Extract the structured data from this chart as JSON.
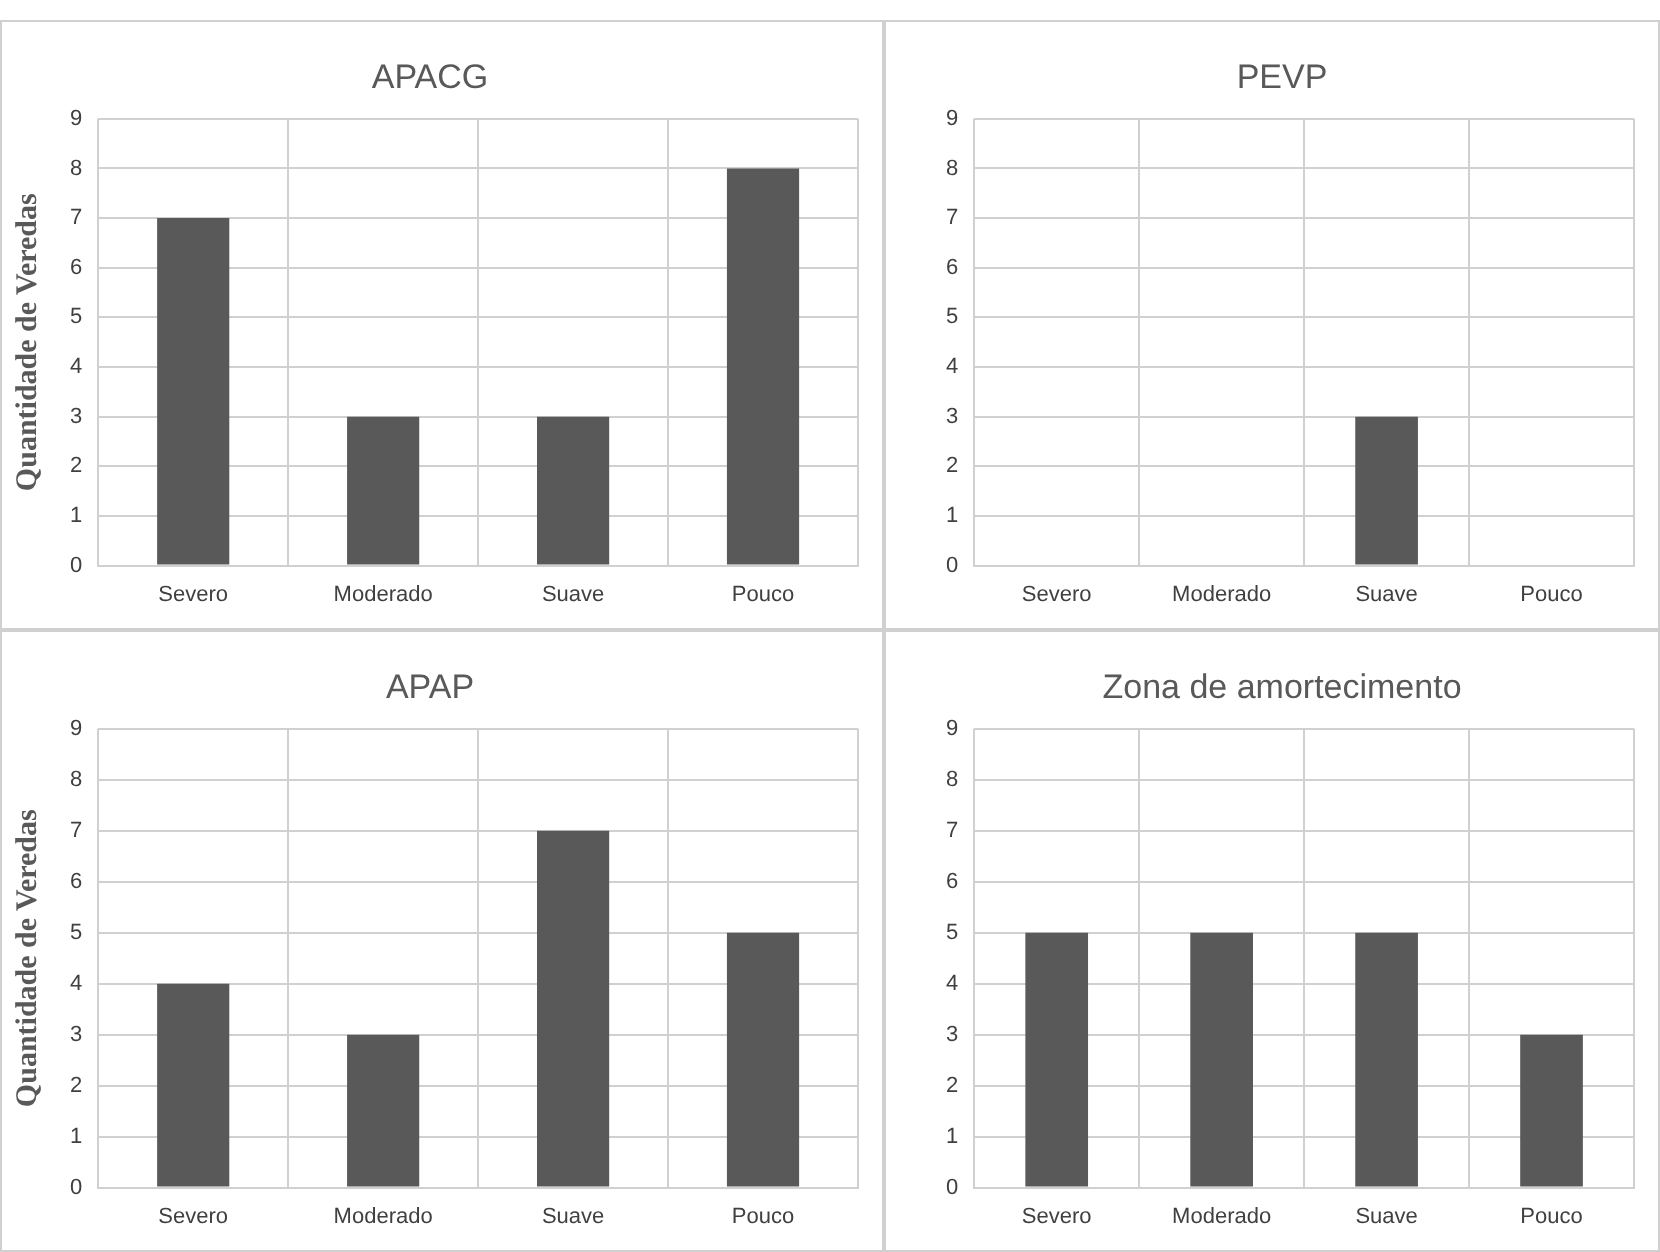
{
  "chart_data": [
    {
      "type": "bar",
      "title": "APACG",
      "ylabel": "Quantidade de Veredas",
      "categories": [
        "Severo",
        "Moderado",
        "Suave",
        "Pouco"
      ],
      "values": [
        7,
        3,
        3,
        8
      ],
      "color": "#595959",
      "ylim": [
        0,
        9
      ],
      "yticks": [
        0,
        1,
        2,
        3,
        4,
        5,
        6,
        7,
        8,
        9
      ],
      "grid": true,
      "legend": false
    },
    {
      "type": "bar",
      "title": "PEVP",
      "categories": [
        "Severo",
        "Moderado",
        "Suave",
        "Pouco"
      ],
      "values": [
        0,
        0,
        3,
        0
      ],
      "color": "#595959",
      "ylim": [
        0,
        9
      ],
      "yticks": [
        0,
        1,
        2,
        3,
        4,
        5,
        6,
        7,
        8,
        9
      ],
      "grid": true,
      "legend": false
    },
    {
      "type": "bar",
      "title": "APAP",
      "ylabel": "Quantidade de Veredas",
      "categories": [
        "Severo",
        "Moderado",
        "Suave",
        "Pouco"
      ],
      "values": [
        4,
        3,
        7,
        5
      ],
      "color": "#595959",
      "ylim": [
        0,
        9
      ],
      "yticks": [
        0,
        1,
        2,
        3,
        4,
        5,
        6,
        7,
        8,
        9
      ],
      "grid": true,
      "legend": false
    },
    {
      "type": "bar",
      "title": "Zona de amortecimento",
      "categories": [
        "Severo",
        "Moderado",
        "Suave",
        "Pouco"
      ],
      "values": [
        5,
        5,
        5,
        3
      ],
      "color": "#595959",
      "ylim": [
        0,
        9
      ],
      "yticks": [
        0,
        1,
        2,
        3,
        4,
        5,
        6,
        7,
        8,
        9
      ],
      "grid": true,
      "legend": false
    }
  ]
}
